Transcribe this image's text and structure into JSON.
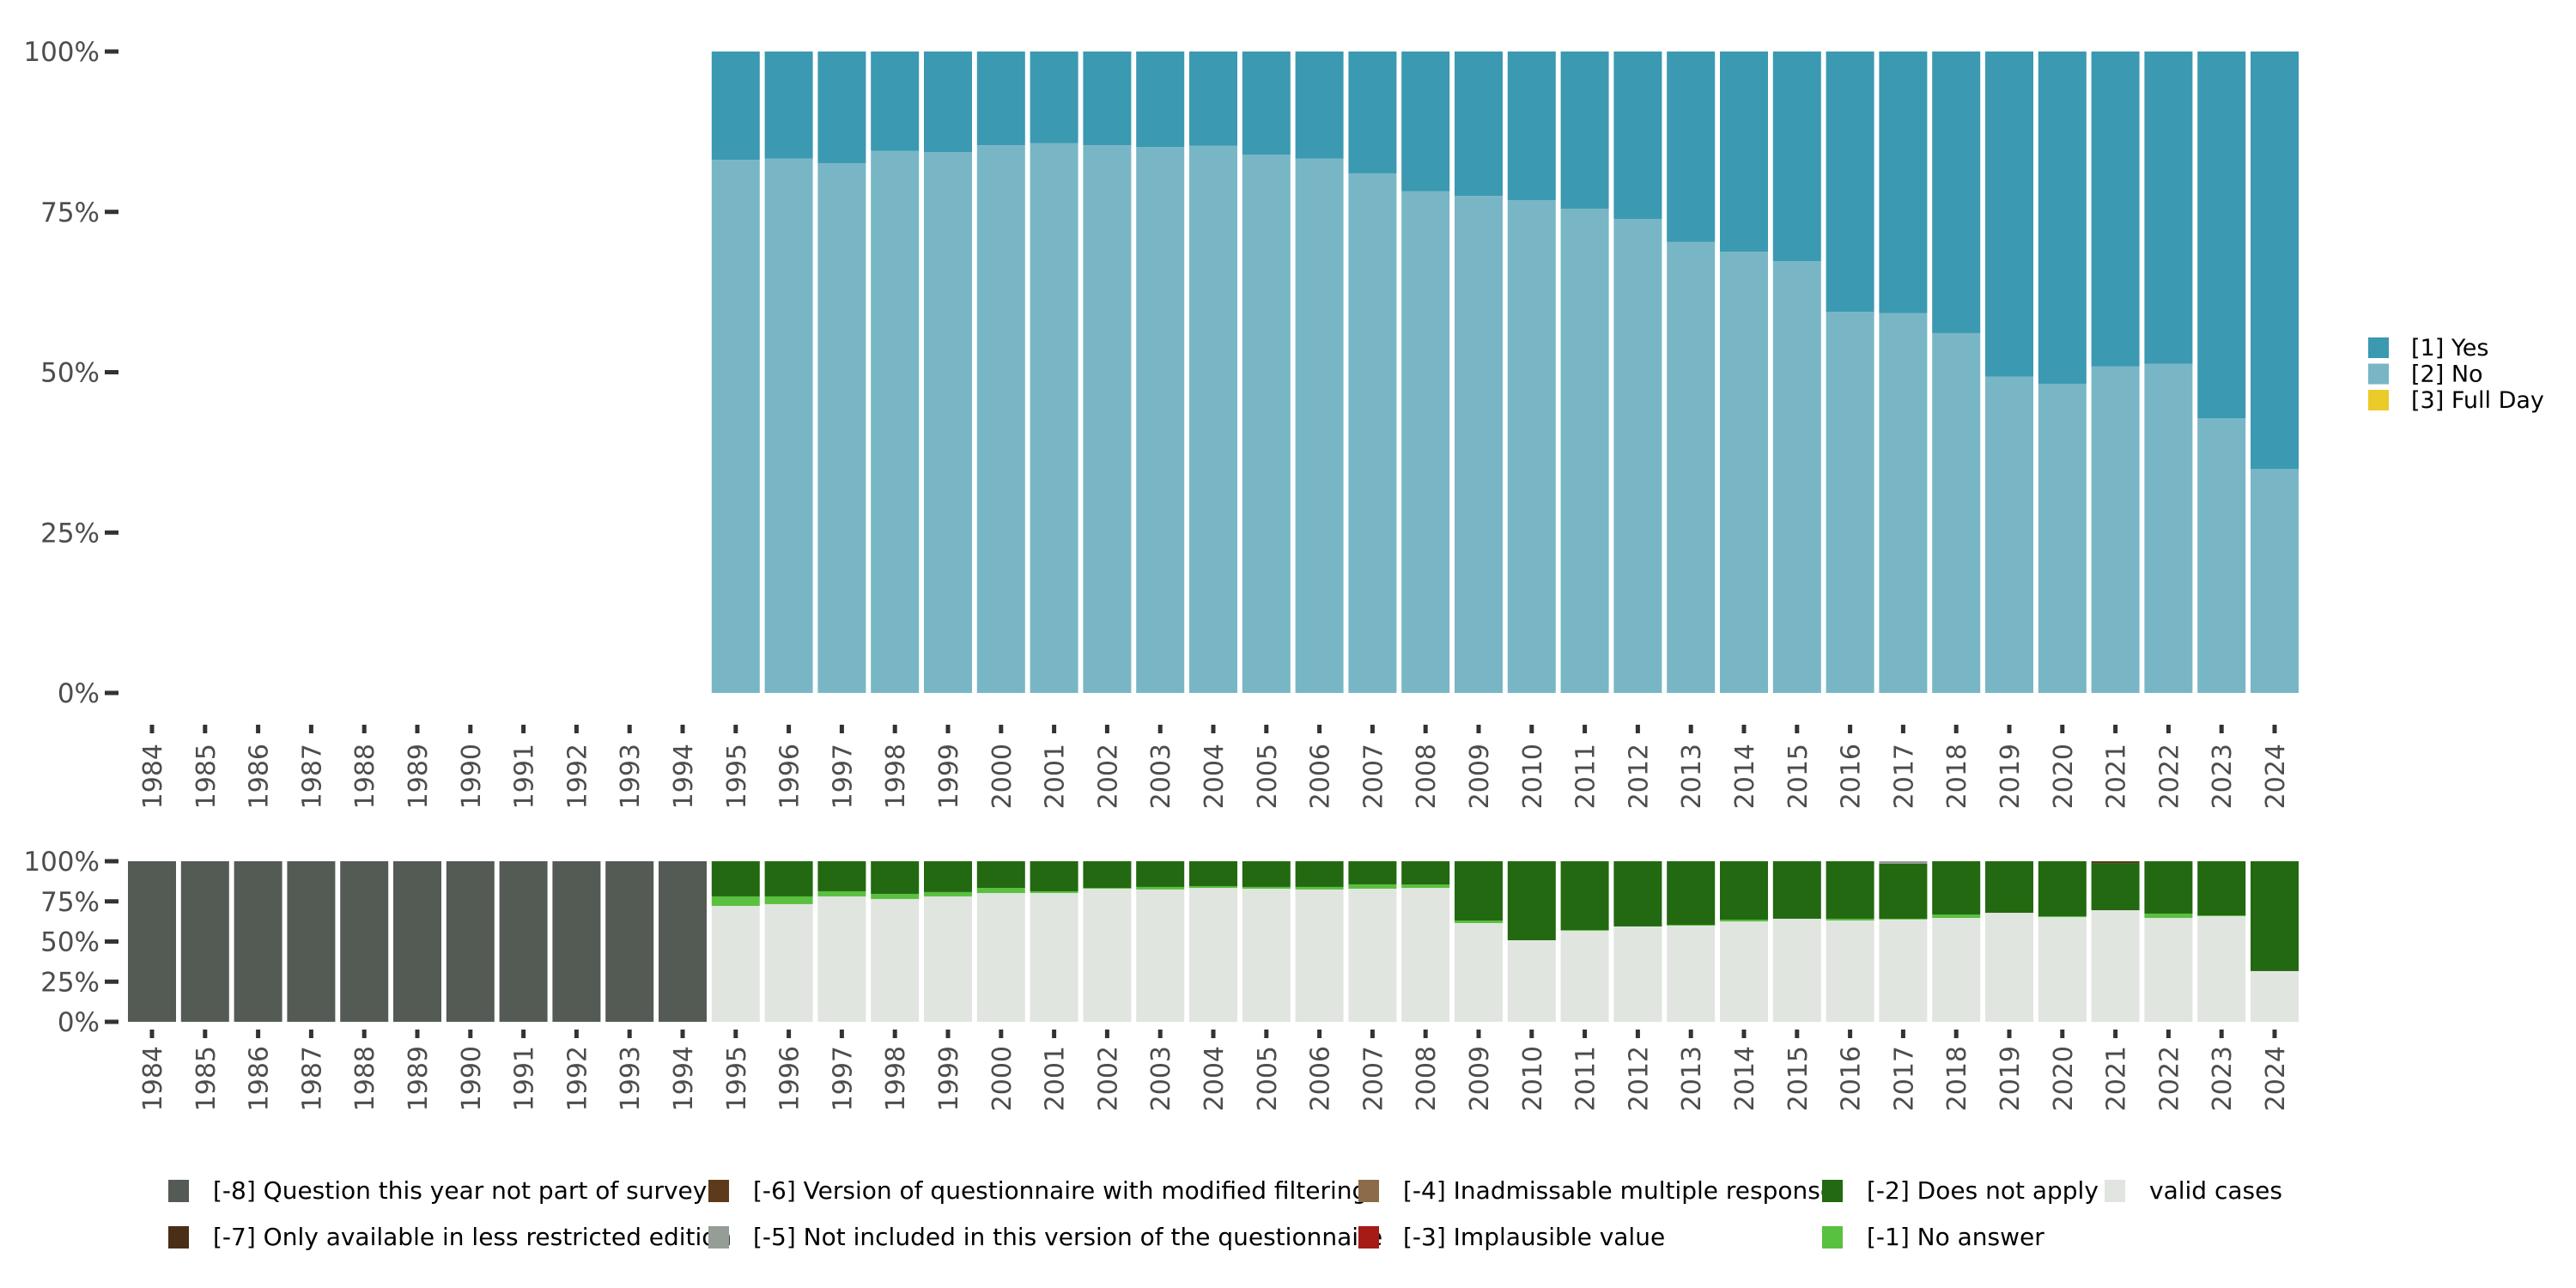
{
  "chart_data": [
    {
      "type": "bar",
      "stacked": true,
      "percent": true,
      "title": "",
      "xlabel": "",
      "ylabel": "",
      "ylim": [
        0,
        100
      ],
      "yticks": [
        "0%",
        "25%",
        "50%",
        "75%",
        "100%"
      ],
      "legend_position": "right",
      "categories": [
        "1984",
        "1985",
        "1986",
        "1987",
        "1988",
        "1989",
        "1990",
        "1991",
        "1992",
        "1993",
        "1994",
        "1995",
        "1996",
        "1997",
        "1998",
        "1999",
        "2000",
        "2001",
        "2002",
        "2003",
        "2004",
        "2005",
        "2006",
        "2007",
        "2008",
        "2009",
        "2010",
        "2011",
        "2012",
        "2013",
        "2014",
        "2015",
        "2016",
        "2017",
        "2018",
        "2019",
        "2020",
        "2021",
        "2022",
        "2023",
        "2024"
      ],
      "series": [
        {
          "name": "[2] No",
          "color": "#79b6c5",
          "values": [
            null,
            null,
            null,
            null,
            null,
            null,
            null,
            null,
            null,
            null,
            null,
            83.1,
            83.3,
            82.6,
            84.5,
            84.3,
            85.4,
            85.7,
            85.4,
            85.1,
            85.3,
            83.9,
            83.3,
            81.0,
            78.2,
            77.5,
            76.8,
            75.5,
            73.9,
            70.3,
            68.8,
            67.3,
            59.4,
            59.2,
            56.1,
            49.3,
            48.2,
            50.9,
            51.3,
            42.8,
            34.9
          ]
        },
        {
          "name": "[1] Yes",
          "color": "#3b99b1",
          "values": [
            null,
            null,
            null,
            null,
            null,
            null,
            null,
            null,
            null,
            null,
            null,
            16.9,
            16.7,
            17.4,
            15.5,
            15.7,
            14.6,
            14.3,
            14.6,
            14.9,
            14.7,
            16.1,
            16.7,
            19.0,
            21.8,
            22.5,
            23.2,
            24.5,
            26.1,
            29.7,
            31.2,
            32.7,
            40.6,
            40.8,
            43.9,
            50.7,
            51.8,
            49.1,
            48.7,
            57.2,
            65.1
          ]
        },
        {
          "name": "[3] Full Day",
          "color": "#ebcb2a",
          "values": [
            null,
            null,
            null,
            null,
            null,
            null,
            null,
            null,
            null,
            null,
            null,
            0,
            0,
            0,
            0,
            0,
            0,
            0,
            0,
            0,
            0,
            0,
            0,
            0,
            0,
            0,
            0,
            0,
            0,
            0,
            0,
            0,
            0,
            0,
            0,
            0,
            0,
            0,
            0,
            0,
            0
          ]
        }
      ],
      "legend": [
        {
          "label": "[1] Yes",
          "color": "#3b99b1"
        },
        {
          "label": "[2] No",
          "color": "#79b6c5"
        },
        {
          "label": "[3] Full Day",
          "color": "#ebcb2a"
        }
      ]
    },
    {
      "type": "bar",
      "stacked": true,
      "percent": true,
      "title": "",
      "xlabel": "",
      "ylabel": "",
      "ylim": [
        0,
        100
      ],
      "yticks": [
        "0%",
        "25%",
        "50%",
        "75%",
        "100%"
      ],
      "legend_position": "bottom",
      "categories": [
        "1984",
        "1985",
        "1986",
        "1987",
        "1988",
        "1989",
        "1990",
        "1991",
        "1992",
        "1993",
        "1994",
        "1995",
        "1996",
        "1997",
        "1998",
        "1999",
        "2000",
        "2001",
        "2002",
        "2003",
        "2004",
        "2005",
        "2006",
        "2007",
        "2008",
        "2009",
        "2010",
        "2011",
        "2012",
        "2013",
        "2014",
        "2015",
        "2016",
        "2017",
        "2018",
        "2019",
        "2020",
        "2021",
        "2022",
        "2023",
        "2024"
      ],
      "series": [
        {
          "name": "valid cases",
          "color": "#e1e5e0",
          "values": [
            0,
            0,
            0,
            0,
            0,
            0,
            0,
            0,
            0,
            0,
            0,
            72.2,
            73.3,
            78.1,
            76.5,
            78.1,
            80.2,
            80.2,
            82.9,
            82.4,
            83.4,
            82.9,
            82.4,
            82.9,
            83.4,
            61.5,
            50.8,
            56.7,
            59.4,
            59.9,
            62.5,
            64.2,
            63.1,
            63.7,
            64.7,
            67.9,
            65.2,
            69.5,
            64.7,
            65.8,
            31.6
          ]
        },
        {
          "name": "[-1] No answer",
          "color": "#5ac03f",
          "values": [
            0,
            0,
            0,
            0,
            0,
            0,
            0,
            0,
            0,
            0,
            0,
            5.9,
            4.8,
            3.2,
            3.2,
            2.7,
            3.2,
            1.1,
            0.5,
            1.6,
            1.1,
            1.1,
            1.6,
            2.7,
            2.1,
            1.6,
            0,
            0.5,
            0,
            0.5,
            1.1,
            0,
            1.1,
            0.5,
            2.1,
            0,
            0.5,
            0,
            2.7,
            0.5,
            0
          ]
        },
        {
          "name": "[-2] Does not apply",
          "color": "#226911",
          "values": [
            0,
            0,
            0,
            0,
            0,
            0,
            0,
            0,
            0,
            0,
            0,
            21.9,
            21.9,
            18.7,
            20.3,
            19.2,
            16.6,
            18.7,
            16.6,
            16.0,
            15.5,
            16.0,
            16.0,
            14.4,
            14.5,
            36.9,
            49.2,
            42.8,
            40.6,
            39.6,
            36.4,
            35.8,
            35.8,
            34.2,
            33.2,
            32.1,
            34.3,
            29.4,
            32.6,
            33.7,
            68.4
          ]
        },
        {
          "name": "[-3] Implausible value",
          "color": "#a61b16",
          "values": [
            0,
            0,
            0,
            0,
            0,
            0,
            0,
            0,
            0,
            0,
            0,
            0,
            0,
            0,
            0,
            0,
            0,
            0,
            0,
            0,
            0,
            0,
            0,
            0,
            0,
            0,
            0,
            0,
            0,
            0,
            0,
            0,
            0,
            0,
            0,
            0,
            0,
            0,
            0,
            0,
            0
          ]
        },
        {
          "name": "[-4] Inadmissable multiple response",
          "color": "#8c6b48",
          "values": [
            0,
            0,
            0,
            0,
            0,
            0,
            0,
            0,
            0,
            0,
            0,
            0,
            0,
            0,
            0,
            0,
            0,
            0,
            0,
            0,
            0,
            0,
            0,
            0,
            0,
            0,
            0,
            0,
            0,
            0,
            0,
            0,
            0,
            0,
            0,
            0,
            0,
            0,
            0,
            0,
            0
          ]
        },
        {
          "name": "[-5] Not included in this version of the questionnaire",
          "color": "#969c96",
          "values": [
            0,
            0,
            0,
            0,
            0,
            0,
            0,
            0,
            0,
            0,
            0,
            0,
            0,
            0,
            0,
            0,
            0,
            0,
            0,
            0,
            0,
            0,
            0,
            0,
            0,
            0,
            0,
            0,
            0,
            0,
            0,
            0,
            0,
            1.6,
            0,
            0,
            0,
            0,
            0,
            0,
            0
          ]
        },
        {
          "name": "[-6] Version of questionnaire with modified filtering",
          "color": "#5e3a1c",
          "values": [
            0,
            0,
            0,
            0,
            0,
            0,
            0,
            0,
            0,
            0,
            0,
            0,
            0,
            0,
            0,
            0,
            0,
            0,
            0,
            0,
            0,
            0,
            0,
            0,
            0,
            0,
            0,
            0,
            0,
            0,
            0,
            0,
            0,
            0,
            0,
            0,
            0,
            1.1,
            0,
            0,
            0
          ]
        },
        {
          "name": "[-7] Only available in less restricted edition",
          "color": "#4b2e16",
          "values": [
            0,
            0,
            0,
            0,
            0,
            0,
            0,
            0,
            0,
            0,
            0,
            0,
            0,
            0,
            0,
            0,
            0,
            0,
            0,
            0,
            0,
            0,
            0,
            0,
            0,
            0,
            0,
            0,
            0,
            0,
            0,
            0,
            0,
            0,
            0,
            0,
            0,
            0,
            0,
            0,
            0
          ]
        },
        {
          "name": "[-8] Question this year not part of survey",
          "color": "#545b55",
          "values": [
            100,
            100,
            100,
            100,
            100,
            100,
            100,
            100,
            100,
            100,
            100,
            0,
            0,
            0,
            0,
            0,
            0,
            0,
            0,
            0,
            0,
            0,
            0,
            0,
            0,
            0,
            0,
            0,
            0,
            0,
            0,
            0,
            0,
            0,
            0,
            0,
            0,
            0,
            0,
            0,
            0
          ]
        }
      ],
      "legend": [
        {
          "label": "[-8] Question this year not part of survey",
          "color": "#545b55"
        },
        {
          "label": "[-7] Only available in less restricted edition",
          "color": "#4b2e16"
        },
        {
          "label": "[-6] Version of questionnaire with modified filtering",
          "color": "#5e3a1c"
        },
        {
          "label": "[-5] Not included in this version of the questionnaire",
          "color": "#969c96"
        },
        {
          "label": "[-4] Inadmissable multiple response",
          "color": "#8c6b48"
        },
        {
          "label": "[-3] Implausible value",
          "color": "#a61b16"
        },
        {
          "label": "[-2] Does not apply",
          "color": "#226911"
        },
        {
          "label": "[-1] No answer",
          "color": "#5ac03f"
        },
        {
          "label": "valid cases",
          "color": "#e1e5e0"
        }
      ]
    }
  ]
}
